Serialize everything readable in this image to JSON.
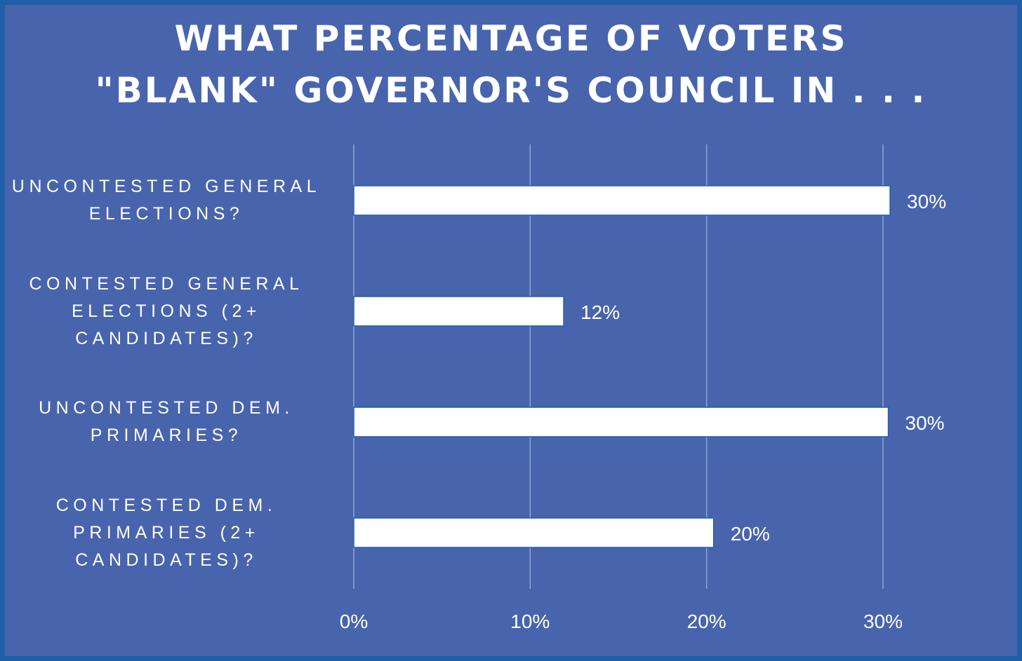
{
  "chart_data": {
    "type": "bar",
    "orientation": "horizontal",
    "title_lines": [
      "WHAT PERCENTAGE OF VOTERS",
      "\"BLANK\" GOVERNOR'S COUNCIL IN . . ."
    ],
    "categories": [
      [
        "UNCONTESTED GENERAL",
        "ELECTIONS?"
      ],
      [
        "CONTESTED GENERAL",
        "ELECTIONS (2+",
        "CANDIDATES)?"
      ],
      [
        "UNCONTESTED DEM.",
        "PRIMARIES?"
      ],
      [
        "CONTESTED DEM.",
        "PRIMARIES (2+",
        "CANDIDATES)?"
      ]
    ],
    "values": [
      30.4,
      11.9,
      30.3,
      20.4
    ],
    "data_labels": [
      "30%",
      "12%",
      "30%",
      "20%"
    ],
    "xticks": [
      0,
      10,
      20,
      30
    ],
    "xtick_labels": [
      "0%",
      "10%",
      "20%",
      "30%"
    ],
    "xlim": [
      0,
      30
    ],
    "grid": "vertical",
    "colors": {
      "background": "#4864ad",
      "border": "#1f5fa8",
      "bar_fill": "#ffffff",
      "bar_stroke": "#1f5fa8",
      "gridline": "#8fa3d6",
      "text": "#ffffff"
    }
  }
}
